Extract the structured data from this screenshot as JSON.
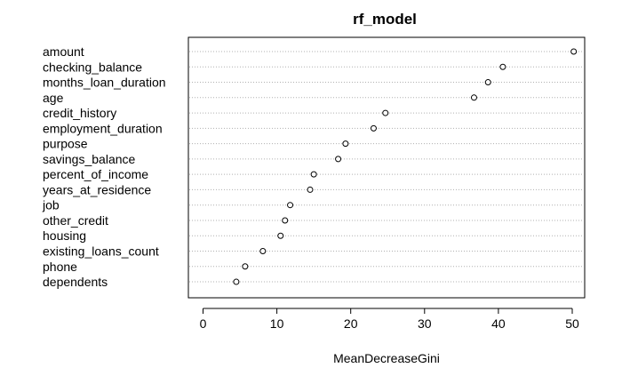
{
  "chart_data": {
    "type": "scatter",
    "title": "rf_model",
    "xlabel": "MeanDecreaseGini",
    "ylabel": "",
    "xlim": [
      0,
      51
    ],
    "xticks": [
      0,
      10,
      20,
      30,
      40,
      50
    ],
    "grid": "dotted horizontal lines per category",
    "legend": "none",
    "categories": [
      "amount",
      "checking_balance",
      "months_loan_duration",
      "age",
      "credit_history",
      "employment_duration",
      "purpose",
      "savings_balance",
      "percent_of_income",
      "years_at_residence",
      "job",
      "other_credit",
      "housing",
      "existing_loans_count",
      "phone",
      "dependents"
    ],
    "values": [
      50.2,
      40.6,
      38.6,
      36.7,
      24.7,
      23.1,
      19.3,
      18.3,
      15.0,
      14.5,
      11.8,
      11.1,
      10.5,
      8.1,
      5.7,
      4.5
    ]
  }
}
